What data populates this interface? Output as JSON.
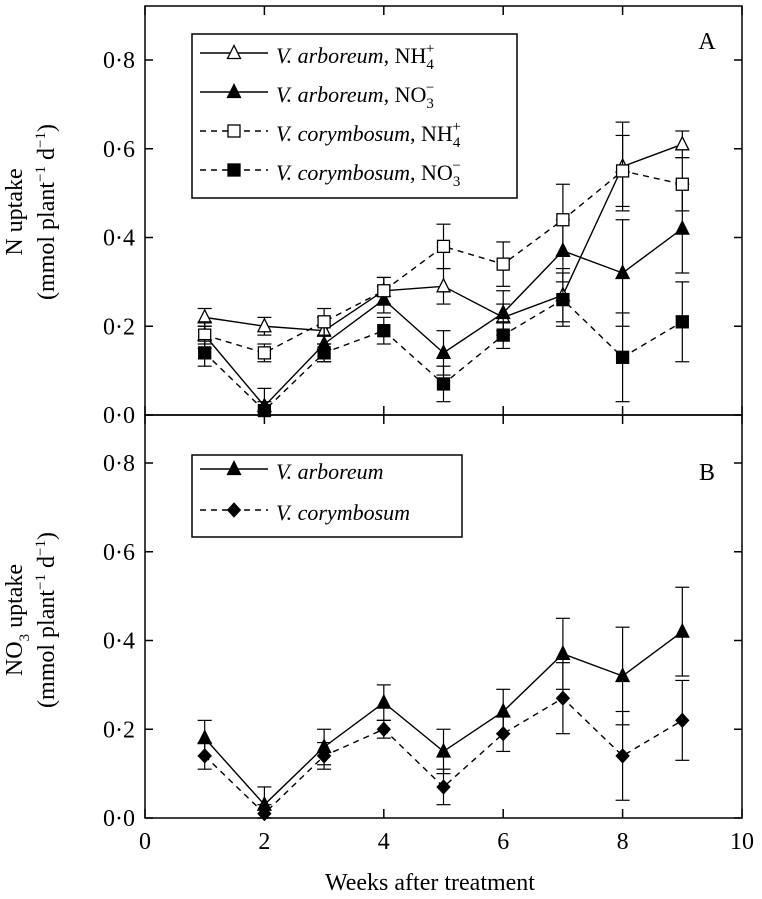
{
  "chart_data": [
    {
      "type": "line",
      "panel_label": "A",
      "ylabel": "N uptake",
      "ylabel_units": [
        "(mmol plant",
        "−1",
        " d",
        "−1",
        ")"
      ],
      "xlim": [
        0,
        10
      ],
      "ylim": [
        0,
        0.9
      ],
      "yticks": [
        0,
        0.2,
        0.4,
        0.6,
        0.8
      ],
      "ytick_labels": [
        "0·0",
        "0·2",
        "0·4",
        "0·6",
        "0·8"
      ],
      "legend_position": "top-left",
      "series": [
        {
          "name": "V. arboreum, NH4+",
          "species": "V. arboreum",
          "ion": "NH",
          "ion_sub": "4",
          "ion_sup": "+",
          "marker": "open-triangle",
          "line": "solid",
          "x": [
            1,
            2,
            3,
            4,
            5,
            6,
            7,
            8,
            9
          ],
          "values": [
            0.22,
            0.2,
            0.19,
            0.28,
            0.29,
            0.22,
            0.27,
            0.56,
            0.61
          ],
          "errors": [
            0.02,
            0.02,
            0.03,
            0.03,
            0.04,
            0.03,
            0.06,
            0.1,
            0.03
          ]
        },
        {
          "name": "V. arboreum, NO3−",
          "species": "V. arboreum",
          "ion": "NO",
          "ion_sub": "3",
          "ion_sup": "−",
          "marker": "filled-triangle",
          "line": "solid",
          "x": [
            1,
            2,
            3,
            4,
            5,
            6,
            7,
            8,
            9
          ],
          "values": [
            0.18,
            0.02,
            0.16,
            0.26,
            0.14,
            0.23,
            0.37,
            0.32,
            0.42
          ],
          "errors": [
            0.03,
            0.04,
            0.04,
            0.03,
            0.05,
            0.05,
            0.07,
            0.12,
            0.1
          ]
        },
        {
          "name": "V. corymbosum, NH4+",
          "species": "V. corymbosum",
          "ion": "NH",
          "ion_sub": "4",
          "ion_sup": "+",
          "marker": "open-square",
          "line": "dashed",
          "x": [
            1,
            2,
            3,
            4,
            5,
            6,
            7,
            8,
            9
          ],
          "values": [
            0.18,
            0.14,
            0.21,
            0.28,
            0.38,
            0.34,
            0.44,
            0.55,
            0.52
          ],
          "errors": [
            0.02,
            0.02,
            0.03,
            0.03,
            0.05,
            0.05,
            0.08,
            0.08,
            0.06
          ]
        },
        {
          "name": "V. corymbosum, NO3−",
          "species": "V. corymbosum",
          "ion": "NO",
          "ion_sub": "3",
          "ion_sup": "−",
          "marker": "filled-square",
          "line": "dashed",
          "x": [
            1,
            2,
            3,
            4,
            5,
            6,
            7,
            8,
            9
          ],
          "values": [
            0.14,
            0.01,
            0.14,
            0.19,
            0.07,
            0.18,
            0.26,
            0.13,
            0.21
          ],
          "errors": [
            0.03,
            0.02,
            0.02,
            0.03,
            0.04,
            0.03,
            0.06,
            0.1,
            0.09
          ]
        }
      ]
    },
    {
      "type": "line",
      "panel_label": "B",
      "ylabel": "NO",
      "ylabel_sub": "3",
      "ylabel_after": " uptake",
      "ylabel_units": [
        "(mmol plant",
        "−1",
        " d",
        "−1",
        ")"
      ],
      "xlabel": "Weeks after treatment",
      "xlim": [
        0,
        10
      ],
      "xticks": [
        0,
        2,
        4,
        6,
        8,
        10
      ],
      "xtick_labels": [
        "0",
        "2",
        "4",
        "6",
        "8",
        "10"
      ],
      "ylim": [
        0,
        0.9
      ],
      "yticks": [
        0,
        0.2,
        0.4,
        0.6,
        0.8
      ],
      "ytick_labels": [
        "0·0",
        "0·2",
        "0·4",
        "0·6",
        "0·8"
      ],
      "legend_position": "top-left",
      "series": [
        {
          "name": "V. arboreum",
          "species": "V. arboreum",
          "marker": "filled-triangle",
          "line": "solid",
          "x": [
            1,
            2,
            3,
            4,
            5,
            6,
            7,
            8,
            9
          ],
          "values": [
            0.18,
            0.03,
            0.16,
            0.26,
            0.15,
            0.24,
            0.37,
            0.32,
            0.42
          ],
          "errors": [
            0.04,
            0.04,
            0.04,
            0.04,
            0.05,
            0.05,
            0.08,
            0.11,
            0.1
          ]
        },
        {
          "name": "V. corymbosum",
          "species": "V. corymbosum",
          "marker": "filled-diamond",
          "line": "dashed",
          "x": [
            1,
            2,
            3,
            4,
            5,
            6,
            7,
            8,
            9
          ],
          "values": [
            0.14,
            0.01,
            0.14,
            0.2,
            0.07,
            0.19,
            0.27,
            0.14,
            0.22
          ],
          "errors": [
            0.03,
            0.02,
            0.03,
            0.02,
            0.04,
            0.04,
            0.08,
            0.1,
            0.09
          ]
        }
      ]
    }
  ]
}
